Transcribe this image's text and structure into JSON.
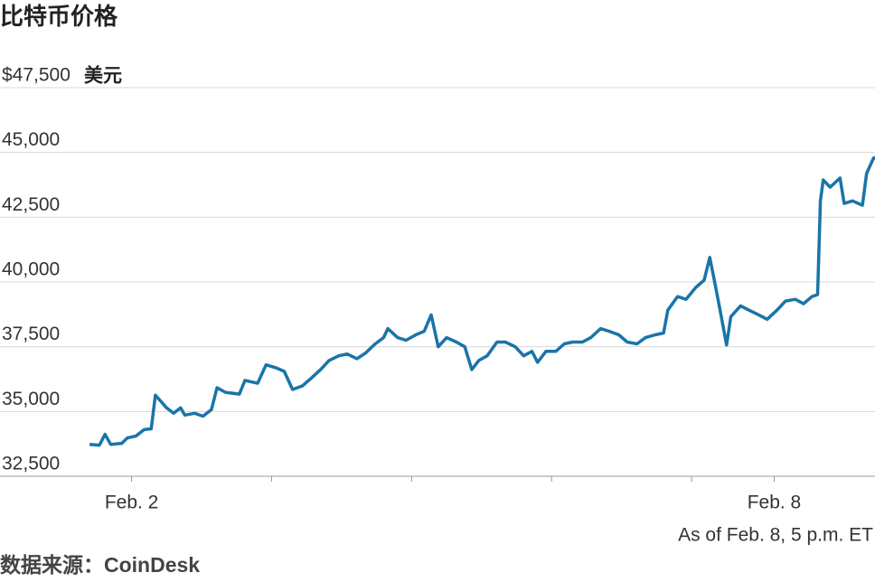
{
  "chart_data": {
    "type": "line",
    "title": "比特币价格",
    "y_unit": "美元",
    "note": "As of Feb. 8, 5 p.m. ET",
    "source": "数据来源：CoinDesk",
    "color": "#1a74a8",
    "grid": true,
    "xlim": [
      1.06,
      7.31
    ],
    "xticks": [
      {
        "value": 2,
        "label": "Feb. 2"
      },
      {
        "value": 6.59,
        "label": "Feb. 8"
      }
    ],
    "xminor_ticks": [
      3,
      4,
      5,
      6
    ],
    "ylim": [
      32500,
      47500
    ],
    "yticks": [
      {
        "value": 32500,
        "label": "32,500"
      },
      {
        "value": 35000,
        "label": "35,000"
      },
      {
        "value": 37500,
        "label": "37,500"
      },
      {
        "value": 40000,
        "label": "40,000"
      },
      {
        "value": 42500,
        "label": "42,500"
      },
      {
        "value": 45000,
        "label": "45,000"
      },
      {
        "value": 47500,
        "label": "$47,500"
      }
    ],
    "x": [
      1.7,
      1.77,
      1.81,
      1.85,
      1.93,
      1.97,
      2.03,
      2.09,
      2.14,
      2.17,
      2.21,
      2.25,
      2.3,
      2.35,
      2.38,
      2.45,
      2.51,
      2.57,
      2.61,
      2.67,
      2.77,
      2.81,
      2.9,
      2.96,
      3.03,
      3.09,
      3.15,
      3.22,
      3.28,
      3.35,
      3.41,
      3.48,
      3.54,
      3.61,
      3.67,
      3.74,
      3.8,
      3.83,
      3.9,
      3.96,
      4.03,
      4.09,
      4.14,
      4.19,
      4.25,
      4.32,
      4.38,
      4.43,
      4.48,
      4.54,
      4.61,
      4.67,
      4.74,
      4.8,
      4.86,
      4.9,
      4.96,
      5.03,
      5.09,
      5.15,
      5.22,
      5.28,
      5.35,
      5.41,
      5.48,
      5.54,
      5.61,
      5.67,
      5.74,
      5.8,
      5.83,
      5.9,
      5.96,
      6.03,
      6.09,
      6.13,
      6.17,
      6.21,
      6.25,
      6.28,
      6.35,
      6.41,
      6.48,
      6.54,
      6.61,
      6.67,
      6.74,
      6.8,
      6.86,
      6.9,
      6.92,
      6.94,
      6.99,
      7.06,
      7.09,
      7.15,
      7.22,
      7.25,
      7.3,
      7.31
    ],
    "values": [
      33730,
      33700,
      34120,
      33730,
      33770,
      33980,
      34050,
      34300,
      34330,
      35630,
      35390,
      35140,
      34930,
      35140,
      34860,
      34930,
      34820,
      35070,
      35920,
      35740,
      35670,
      36200,
      36090,
      36800,
      36690,
      36550,
      35850,
      35990,
      36270,
      36620,
      36970,
      37150,
      37220,
      37040,
      37250,
      37610,
      37850,
      38200,
      37850,
      37750,
      37960,
      38100,
      38730,
      37500,
      37850,
      37680,
      37500,
      36620,
      36970,
      37150,
      37680,
      37680,
      37500,
      37150,
      37320,
      36900,
      37320,
      37320,
      37610,
      37680,
      37680,
      37850,
      38200,
      38100,
      37960,
      37680,
      37610,
      37850,
      37960,
      38030,
      38910,
      39440,
      39330,
      39790,
      40070,
      40950,
      39860,
      38730,
      37570,
      38660,
      39080,
      38910,
      38730,
      38560,
      38910,
      39260,
      39330,
      39160,
      39440,
      39510,
      43130,
      43940,
      43660,
      44010,
      43030,
      43130,
      42960,
      44190,
      44790,
      44790
    ]
  }
}
